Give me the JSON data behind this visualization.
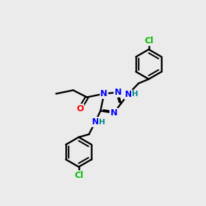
{
  "bg_color": "#ebebeb",
  "atom_colors": {
    "N": "#0000ff",
    "O": "#ff0000",
    "Cl": "#00bb00",
    "C": "#000000",
    "H": "#008888"
  },
  "bond_color": "#000000",
  "bond_width": 1.8,
  "font_size_atom": 9,
  "font_size_cl": 9,
  "font_size_h": 8
}
